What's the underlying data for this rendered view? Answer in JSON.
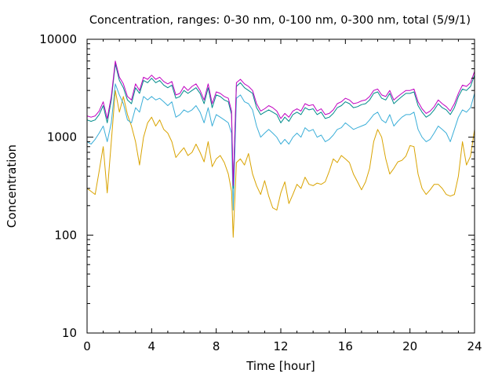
{
  "chart_data": {
    "type": "line",
    "title": "Concentration, ranges: 0-30 nm, 0-100 nm, 0-300 nm, total (5/9/1)",
    "xlabel": "Time [hour]",
    "ylabel": "Concentration",
    "xlim": [
      0,
      24
    ],
    "ylim": [
      10,
      10000
    ],
    "yscale": "log",
    "grid": false,
    "legend": "none",
    "x_ticks": [
      "0",
      "4",
      "8",
      "12",
      "16",
      "20",
      "24"
    ],
    "y_ticks": [
      "10",
      "100",
      "1000",
      "10000"
    ],
    "x": [
      0,
      0.25,
      0.5,
      0.75,
      1.0,
      1.25,
      1.5,
      1.75,
      2.0,
      2.25,
      2.5,
      2.75,
      3.0,
      3.25,
      3.5,
      3.75,
      4.0,
      4.25,
      4.5,
      4.75,
      5.0,
      5.25,
      5.5,
      5.75,
      6.0,
      6.25,
      6.5,
      6.75,
      7.0,
      7.25,
      7.5,
      7.75,
      8.0,
      8.25,
      8.5,
      8.75,
      8.95,
      9.05,
      9.25,
      9.5,
      9.75,
      10.0,
      10.25,
      10.5,
      10.75,
      11.0,
      11.25,
      11.5,
      11.75,
      12.0,
      12.25,
      12.5,
      12.75,
      13.0,
      13.25,
      13.5,
      13.75,
      14.0,
      14.25,
      14.5,
      14.75,
      15.0,
      15.25,
      15.5,
      15.75,
      16.0,
      16.25,
      16.5,
      16.75,
      17.0,
      17.25,
      17.5,
      17.75,
      18.0,
      18.25,
      18.5,
      18.75,
      19.0,
      19.25,
      19.5,
      19.75,
      20.0,
      20.25,
      20.5,
      20.75,
      21.0,
      21.25,
      21.5,
      21.75,
      22.0,
      22.25,
      22.5,
      22.75,
      23.0,
      23.25,
      23.5,
      23.75,
      24.0
    ],
    "series": [
      {
        "color": "#d9a300",
        "values": [
          300,
          280,
          260,
          450,
          800,
          270,
          900,
          3000,
          1800,
          2600,
          1700,
          1300,
          900,
          520,
          1000,
          1400,
          1600,
          1300,
          1500,
          1200,
          1100,
          900,
          620,
          700,
          780,
          650,
          700,
          850,
          700,
          560,
          900,
          500,
          600,
          650,
          550,
          420,
          280,
          95,
          550,
          600,
          520,
          680,
          420,
          320,
          260,
          360,
          250,
          190,
          180,
          270,
          350,
          210,
          260,
          330,
          300,
          390,
          330,
          320,
          340,
          330,
          350,
          450,
          600,
          550,
          650,
          600,
          550,
          420,
          350,
          290,
          350,
          480,
          900,
          1200,
          1000,
          600,
          420,
          480,
          560,
          580,
          640,
          820,
          800,
          420,
          300,
          260,
          290,
          330,
          330,
          300,
          260,
          250,
          260,
          400,
          900,
          520,
          640,
          1200
        ]
      },
      {
        "color": "#3aaed8",
        "values": [
          900,
          850,
          950,
          1100,
          1300,
          900,
          1400,
          3500,
          2700,
          2200,
          1500,
          1400,
          2000,
          1800,
          2600,
          2400,
          2600,
          2400,
          2500,
          2300,
          2100,
          2300,
          1600,
          1700,
          1900,
          1800,
          1900,
          2100,
          1800,
          1400,
          2000,
          1300,
          1700,
          1600,
          1500,
          1400,
          1100,
          180,
          2500,
          2700,
          2300,
          2200,
          1900,
          1300,
          1000,
          1100,
          1200,
          1100,
          1000,
          850,
          950,
          850,
          1000,
          1100,
          1000,
          1250,
          1150,
          1200,
          1000,
          1050,
          900,
          950,
          1050,
          1200,
          1250,
          1400,
          1300,
          1200,
          1250,
          1300,
          1350,
          1500,
          1700,
          1800,
          1500,
          1400,
          1700,
          1300,
          1450,
          1600,
          1700,
          1700,
          1800,
          1200,
          1000,
          900,
          950,
          1100,
          1300,
          1200,
          1100,
          900,
          1200,
          1600,
          1900,
          1800,
          2000,
          2800
        ]
      },
      {
        "color": "#008b8b",
        "values": [
          1500,
          1450,
          1500,
          1700,
          2100,
          1400,
          2400,
          5600,
          3800,
          3200,
          2400,
          2200,
          3200,
          2800,
          3800,
          3600,
          4000,
          3600,
          3800,
          3400,
          3200,
          3400,
          2500,
          2600,
          3000,
          2800,
          3000,
          3200,
          2800,
          2200,
          3200,
          2000,
          2700,
          2600,
          2400,
          2300,
          1700,
          300,
          3300,
          3600,
          3200,
          3000,
          2800,
          2000,
          1700,
          1800,
          1900,
          1800,
          1700,
          1400,
          1600,
          1450,
          1700,
          1800,
          1700,
          2000,
          1900,
          1950,
          1700,
          1800,
          1550,
          1600,
          1750,
          2000,
          2100,
          2300,
          2200,
          2000,
          2050,
          2150,
          2200,
          2400,
          2800,
          2900,
          2500,
          2400,
          2800,
          2200,
          2400,
          2600,
          2800,
          2800,
          2900,
          2100,
          1800,
          1600,
          1700,
          1900,
          2200,
          2000,
          1900,
          1700,
          2000,
          2600,
          3100,
          3000,
          3300,
          4300
        ]
      },
      {
        "color": "#c000c0",
        "values": [
          1650,
          1600,
          1650,
          1850,
          2300,
          1550,
          2600,
          6000,
          4100,
          3500,
          2600,
          2400,
          3500,
          3000,
          4100,
          3900,
          4300,
          3900,
          4100,
          3700,
          3500,
          3700,
          2700,
          2800,
          3300,
          3000,
          3300,
          3500,
          3000,
          2400,
          3500,
          2200,
          2900,
          2800,
          2600,
          2500,
          1850,
          320,
          3600,
          3900,
          3500,
          3300,
          3000,
          2200,
          1850,
          1950,
          2100,
          2000,
          1850,
          1550,
          1750,
          1600,
          1850,
          1950,
          1850,
          2200,
          2100,
          2150,
          1850,
          1950,
          1700,
          1750,
          1900,
          2200,
          2300,
          2500,
          2400,
          2200,
          2250,
          2350,
          2400,
          2600,
          3000,
          3100,
          2700,
          2600,
          3000,
          2400,
          2600,
          2800,
          3000,
          3000,
          3100,
          2300,
          1950,
          1750,
          1850,
          2050,
          2400,
          2200,
          2050,
          1850,
          2200,
          2800,
          3400,
          3300,
          3600,
          4700
        ]
      }
    ]
  }
}
